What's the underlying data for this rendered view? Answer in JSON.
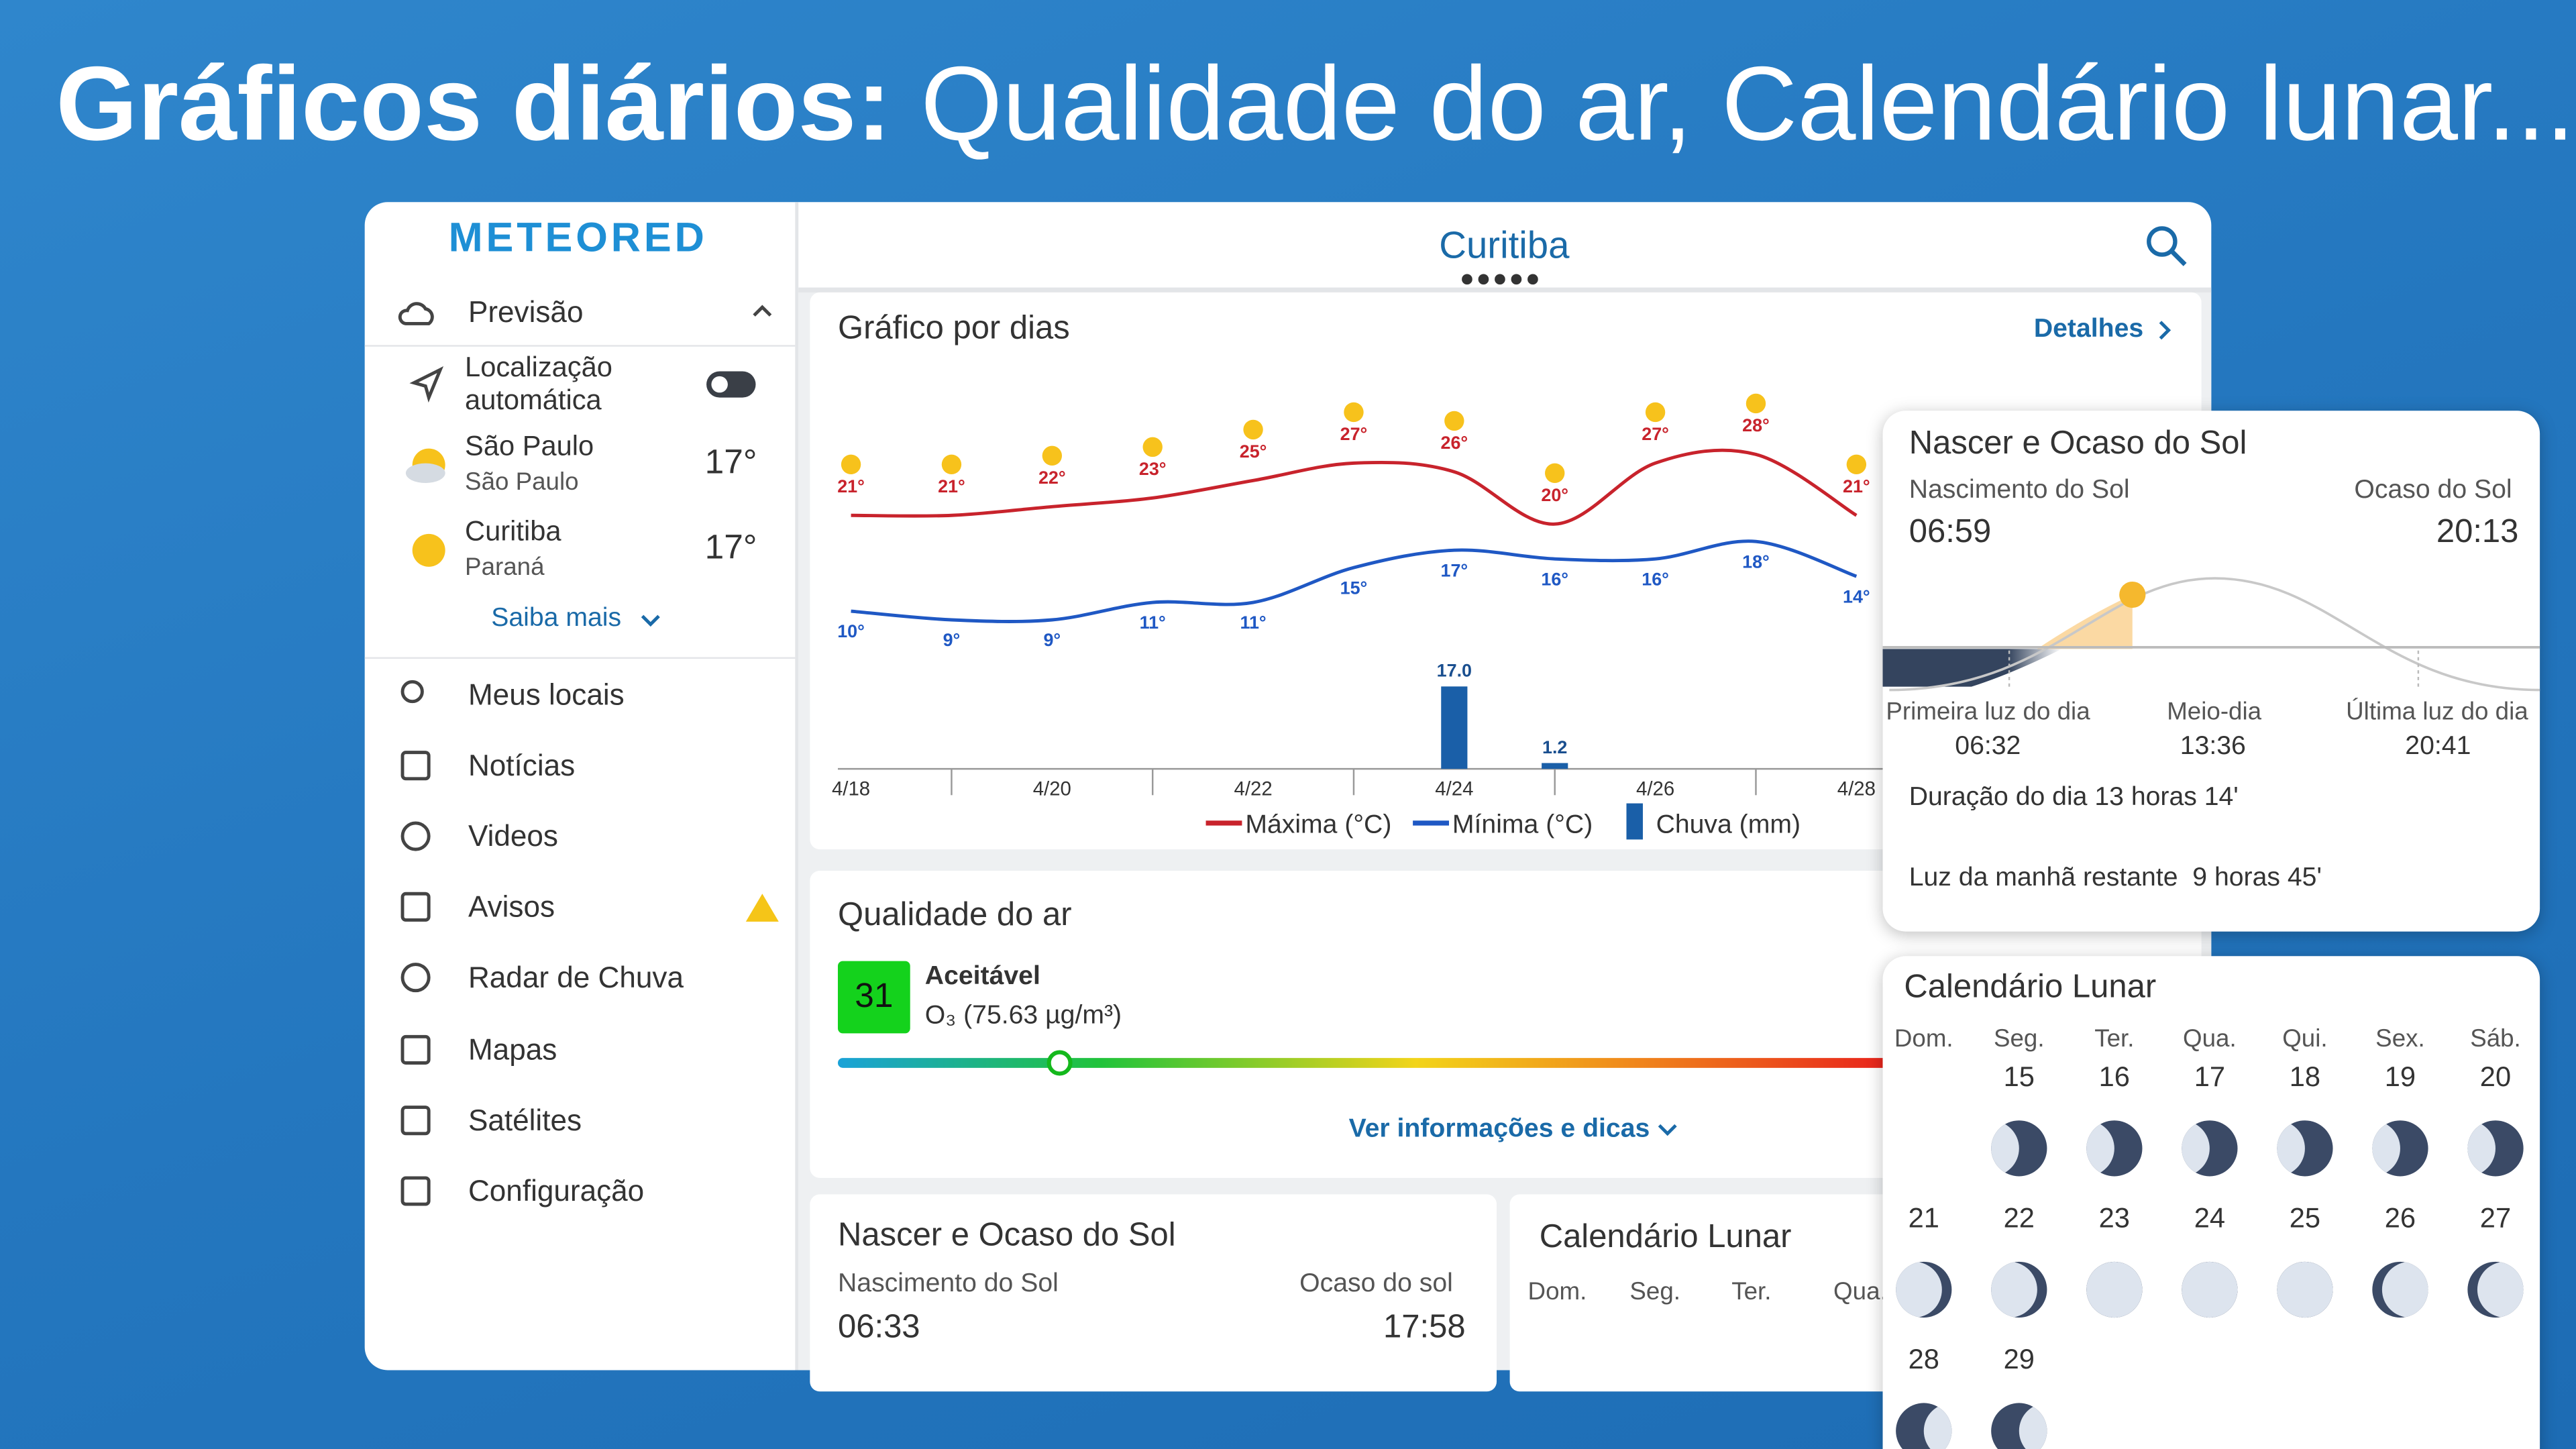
{
  "headline": {
    "bold": "Gráficos diários:",
    "rest": "Qualidade do ar, Calendário lunar..."
  },
  "sidebar": {
    "logo": "METEORED",
    "forecast": "Previsão",
    "auto_location": [
      "Localização",
      "automática"
    ],
    "locations": [
      {
        "name": "São Paulo",
        "region": "São Paulo",
        "temp": "17°"
      },
      {
        "name": "Curitiba",
        "region": "Paraná",
        "temp": "17°"
      }
    ],
    "more": "Saiba mais",
    "menu": [
      "Meus locais",
      "Notícias",
      "Videos",
      "Avisos",
      "Radar de Chuva",
      "Mapas",
      "Satélites",
      "Configuração"
    ]
  },
  "header": {
    "city": "Curitiba"
  },
  "chart_data": {
    "type": "line",
    "title": "Gráfico por dias",
    "link": "Detalhes",
    "categories": [
      "4/18",
      null,
      "4/20",
      null,
      "4/22",
      null,
      "4/24",
      null,
      "4/26",
      null,
      "4/28"
    ],
    "series": [
      {
        "name": "Máxima (°C)",
        "color": "#c8232c",
        "values": [
          21,
          21,
          22,
          23,
          25,
          27,
          26,
          20,
          27,
          28,
          21
        ],
        "value_labels": [
          "21°",
          "21°",
          "22°",
          "23°",
          "25°",
          "27°",
          "26°",
          "20°",
          "27°",
          "28°",
          "21°"
        ]
      },
      {
        "name": "Mínima (°C)",
        "color": "#1f58c4",
        "values": [
          10,
          9,
          9,
          11,
          11,
          15,
          17,
          16,
          16,
          18,
          14
        ],
        "value_labels": [
          "10°",
          "9°",
          "9°",
          "11°",
          "11°",
          "15°",
          "17°",
          "16°",
          "16°",
          "18°",
          "14°"
        ]
      },
      {
        "name": "Chuva (mm)",
        "type": "bar",
        "color": "#1a5fa8",
        "values": [
          null,
          null,
          null,
          null,
          null,
          null,
          17.0,
          1.2,
          null,
          null,
          null
        ],
        "value_labels": [
          null,
          null,
          null,
          null,
          null,
          null,
          "17.0",
          "1.2",
          null,
          null,
          null
        ]
      }
    ]
  },
  "air_quality": {
    "title": "Qualidade do ar",
    "index": "31",
    "status": "Aceitável",
    "pollutant": "O₃ (75.63 µg/m³)",
    "link": "Ver informações e dicas"
  },
  "sun_small": {
    "title": "Nascer e Ocaso do Sol",
    "sunrise_label": "Nascimento do Sol",
    "sunset_label": "Ocaso do sol",
    "sunrise": "06:33",
    "sunset": "17:58"
  },
  "moon_small": {
    "title": "Calendário Lunar",
    "weekdays": [
      "Dom.",
      "Seg.",
      "Ter.",
      "Qua."
    ]
  },
  "sun_card": {
    "title": "Nascer e Ocaso do Sol",
    "sunrise_label": "Nascimento do Sol",
    "sunset_label": "Ocaso do Sol",
    "sunrise": "06:59",
    "sunset": "20:13",
    "first_light_label": "Primeira luz do dia",
    "first_light": "06:32",
    "noon_label": "Meio-dia",
    "noon": "13:36",
    "last_light_label": "Última luz do dia",
    "last_light": "20:41",
    "duration": "Duração do dia 13 horas 14'",
    "remaining": "Luz da manhã restante  9 horas 45'"
  },
  "moon_card": {
    "title": "Calendário Lunar",
    "weekdays": [
      "Dom.",
      "Seg.",
      "Ter.",
      "Qua.",
      "Qui.",
      "Sex.",
      "Sáb."
    ],
    "dates": [
      "15",
      "16",
      "17",
      "18",
      "19",
      "20",
      "21",
      "22",
      "23",
      "24",
      "25",
      "26",
      "27",
      "28",
      "29"
    ]
  }
}
